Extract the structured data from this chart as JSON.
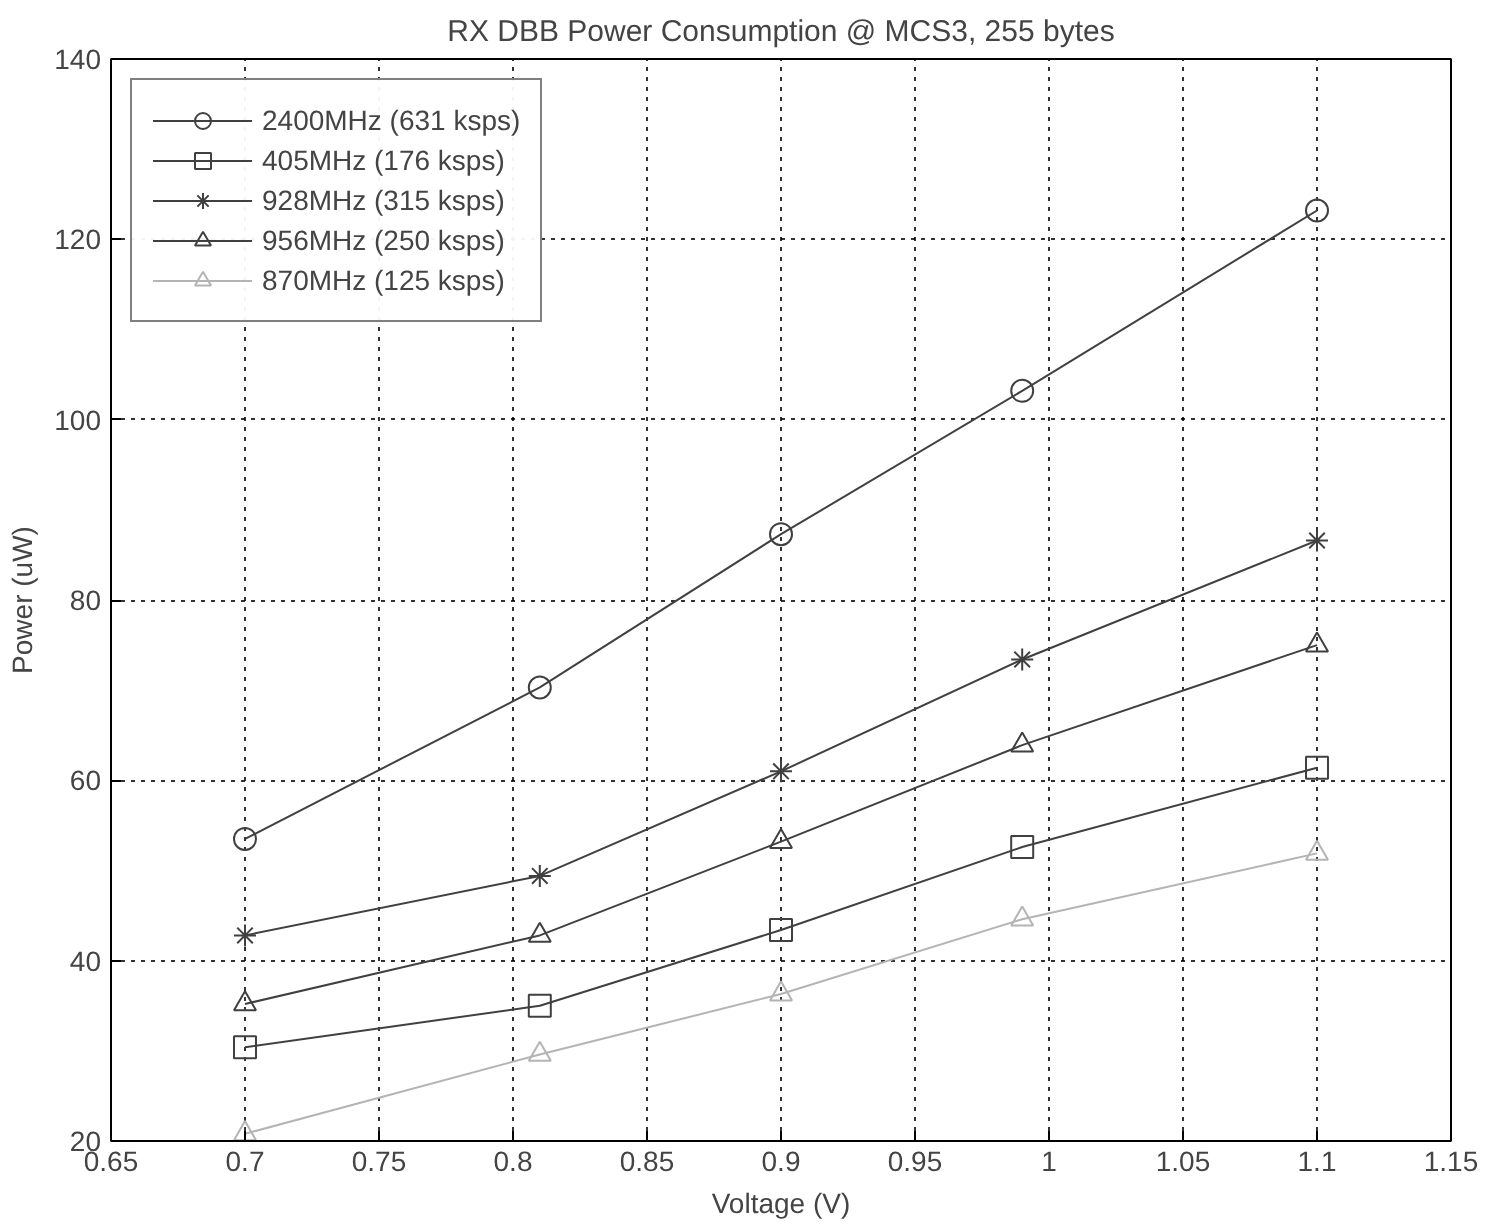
{
  "chart_data": {
    "type": "line",
    "title": "RX DBB Power Consumption @ MCS3, 255 bytes",
    "xlabel": "Voltage (V)",
    "ylabel": "Power (uW)",
    "x": [
      0.7,
      0.81,
      0.9,
      0.99,
      1.1
    ],
    "series": [
      {
        "name": "2400MHz (631 ksps)",
        "color": "#404040",
        "marker": "circle",
        "values": [
          53.5,
          70.3,
          87.3,
          103.2,
          123.2
        ]
      },
      {
        "name": "405MHz (176 ksps)",
        "color": "#404040",
        "marker": "square",
        "values": [
          30.4,
          35.0,
          43.4,
          52.6,
          61.4
        ]
      },
      {
        "name": "928MHz (315 ksps)",
        "color": "#404040",
        "marker": "cross",
        "values": [
          42.8,
          49.4,
          61.0,
          73.4,
          86.6
        ]
      },
      {
        "name": "956MHz (250 ksps)",
        "color": "#404040",
        "marker": "triangle",
        "values": [
          35.2,
          42.8,
          53.2,
          63.9,
          75.0
        ]
      },
      {
        "name": "870MHz (125 ksps)",
        "color": "#b4b4b4",
        "marker": "triangle",
        "values": [
          20.8,
          29.6,
          36.3,
          44.6,
          51.9
        ]
      }
    ],
    "xlim": [
      0.65,
      1.15
    ],
    "xticks": [
      0.65,
      0.7,
      0.75,
      0.8,
      0.85,
      0.9,
      0.95,
      1,
      1.05,
      1.1,
      1.15
    ],
    "ylim": [
      20,
      140
    ],
    "yticks": [
      20,
      40,
      60,
      80,
      100,
      120,
      140
    ],
    "grid": true,
    "legend": "top left",
    "line_style": "solid"
  }
}
